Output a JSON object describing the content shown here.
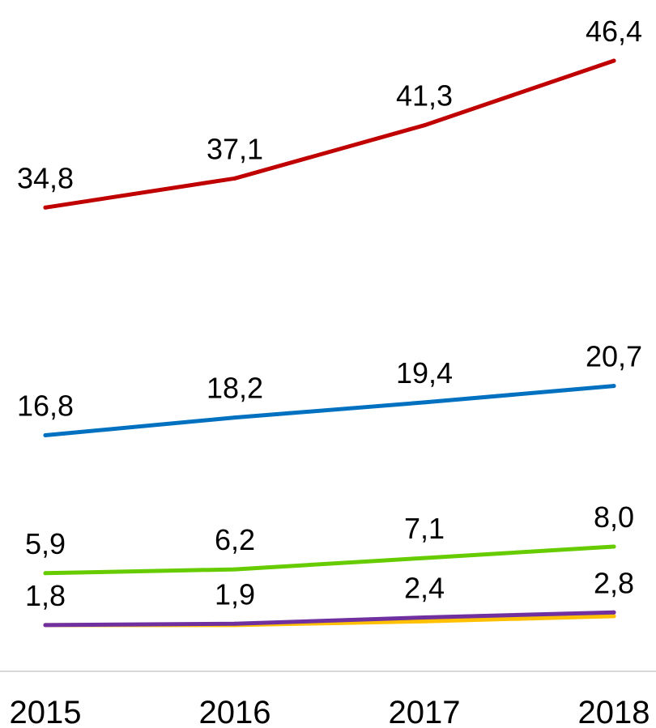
{
  "chart_data": {
    "type": "line",
    "categories": [
      "2015",
      "2016",
      "2017",
      "2018"
    ],
    "ylim": [
      0,
      50
    ],
    "grid": false,
    "legend": "none",
    "series": [
      {
        "color": "#C00000",
        "values": [
          34.8,
          37.1,
          41.3,
          46.4
        ],
        "labels": [
          "34,8",
          "37,1",
          "41,3",
          "46,4"
        ]
      },
      {
        "color": "#0070C0",
        "values": [
          16.8,
          18.2,
          19.4,
          20.7
        ],
        "labels": [
          "16,8",
          "18,2",
          "19,4",
          "20,7"
        ]
      },
      {
        "color": "#66CC00",
        "values": [
          5.9,
          6.2,
          7.1,
          8.0
        ],
        "labels": [
          "5,9",
          "6,2",
          "7,1",
          "8,0"
        ]
      },
      {
        "color": "#7030A0",
        "values": [
          1.8,
          1.9,
          2.4,
          2.8
        ],
        "labels": [
          "1,8",
          "1,9",
          "2,4",
          "2,8"
        ]
      },
      {
        "color": "#FFC000",
        "values": [
          1.8,
          1.8,
          2.1,
          2.5
        ]
      }
    ]
  }
}
